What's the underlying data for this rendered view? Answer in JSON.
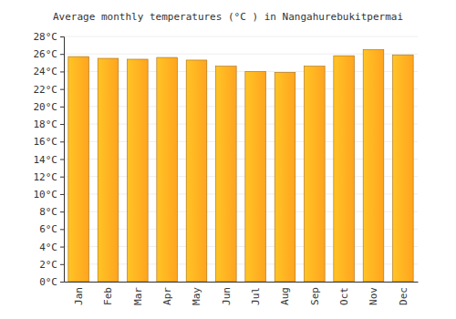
{
  "chart_data": {
    "type": "bar",
    "title": "Average monthly temperatures (°C ) in Nangahurebukitpermai",
    "categories": [
      "Jan",
      "Feb",
      "Mar",
      "Apr",
      "May",
      "Jun",
      "Jul",
      "Aug",
      "Sep",
      "Oct",
      "Nov",
      "Dec"
    ],
    "values": [
      25.7,
      25.5,
      25.4,
      25.6,
      25.3,
      24.6,
      24.0,
      23.9,
      24.6,
      25.8,
      26.5,
      25.9
    ],
    "color": "#ffa41f",
    "ylim": [
      0,
      28
    ],
    "yticks": [
      {
        "value": 0,
        "label": "0°C"
      },
      {
        "value": 2,
        "label": "2°C"
      },
      {
        "value": 4,
        "label": "4°C"
      },
      {
        "value": 6,
        "label": "6°C"
      },
      {
        "value": 8,
        "label": "8°C"
      },
      {
        "value": 10,
        "label": "10°C"
      },
      {
        "value": 12,
        "label": "12°C"
      },
      {
        "value": 14,
        "label": "14°C"
      },
      {
        "value": 16,
        "label": "16°C"
      },
      {
        "value": 18,
        "label": "18°C"
      },
      {
        "value": 20,
        "label": "20°C"
      },
      {
        "value": 22,
        "label": "22°C"
      },
      {
        "value": 24,
        "label": "24°C"
      },
      {
        "value": 26,
        "label": "26°C"
      },
      {
        "value": 28,
        "label": "28°C"
      }
    ],
    "grid": true
  }
}
